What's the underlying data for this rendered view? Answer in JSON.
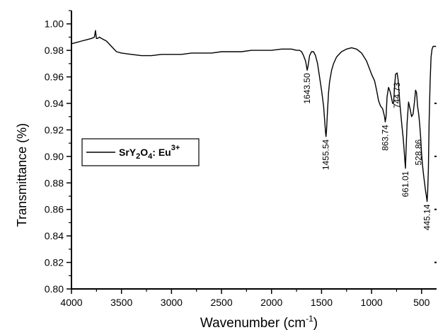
{
  "chart_data": {
    "type": "line",
    "title": "",
    "xlabel": "Wavenumber (cm",
    "xlabel_sup": "-1",
    "xlabel_tail": ")",
    "ylabel": "Transmittance (%)",
    "xlim": [
      4000,
      350
    ],
    "ylim": [
      0.8,
      1.01
    ],
    "x_reversed": true,
    "x_ticks": [
      4000,
      3500,
      3000,
      2500,
      2000,
      1500,
      1000,
      500
    ],
    "x_tick_labels": [
      "4000",
      "3500",
      "3000",
      "2500",
      "2000",
      "1500",
      "1000",
      "500"
    ],
    "y_ticks": [
      0.8,
      0.82,
      0.84,
      0.86,
      0.88,
      0.9,
      0.92,
      0.94,
      0.96,
      0.98,
      1.0
    ],
    "y_tick_labels": [
      "0.80",
      "0.82",
      "0.84",
      "0.86",
      "0.88",
      "0.90",
      "0.92",
      "0.94",
      "0.96",
      "0.98",
      "1.00"
    ],
    "grid": false,
    "legend": {
      "position": "left-middle",
      "entries": [
        {
          "text_main": "SrY",
          "sub1": "2",
          "mid": "O",
          "sub2": "4",
          "tail": ": Eu",
          "sup": "3+"
        }
      ]
    },
    "series": [
      {
        "color": "#000000",
        "x": [
          4000,
          3950,
          3900,
          3850,
          3800,
          3770,
          3760,
          3750,
          3740,
          3720,
          3700,
          3650,
          3600,
          3550,
          3500,
          3400,
          3300,
          3200,
          3100,
          3000,
          2900,
          2800,
          2700,
          2600,
          2500,
          2400,
          2300,
          2200,
          2100,
          2000,
          1900,
          1800,
          1750,
          1720,
          1700,
          1680,
          1660,
          1650,
          1643.5,
          1635,
          1620,
          1600,
          1580,
          1560,
          1540,
          1520,
          1500,
          1480,
          1470,
          1460,
          1455.54,
          1450,
          1440,
          1430,
          1420,
          1400,
          1380,
          1350,
          1300,
          1250,
          1200,
          1150,
          1100,
          1050,
          1000,
          970,
          950,
          930,
          910,
          890,
          880,
          870,
          863.74,
          855,
          845,
          830,
          815,
          800,
          790,
          780,
          770,
          760,
          744.73,
          735,
          725,
          715,
          705,
          695,
          685,
          675,
          668,
          661.01,
          655,
          645,
          630,
          615,
          600,
          585,
          570,
          560,
          550,
          540,
          528.86,
          520,
          510,
          500,
          490,
          480,
          470,
          460,
          452,
          445.14,
          440,
          432,
          425,
          415,
          405,
          395,
          385,
          375,
          365,
          355
        ],
        "y": [
          0.985,
          0.986,
          0.987,
          0.988,
          0.989,
          0.99,
          0.995,
          0.989,
          0.989,
          0.99,
          0.989,
          0.987,
          0.983,
          0.979,
          0.978,
          0.977,
          0.976,
          0.976,
          0.977,
          0.977,
          0.977,
          0.978,
          0.978,
          0.978,
          0.979,
          0.979,
          0.979,
          0.98,
          0.98,
          0.98,
          0.981,
          0.981,
          0.98,
          0.98,
          0.979,
          0.976,
          0.972,
          0.968,
          0.965,
          0.968,
          0.976,
          0.979,
          0.979,
          0.976,
          0.97,
          0.96,
          0.95,
          0.938,
          0.928,
          0.918,
          0.915,
          0.92,
          0.935,
          0.948,
          0.956,
          0.965,
          0.97,
          0.975,
          0.979,
          0.981,
          0.982,
          0.981,
          0.978,
          0.972,
          0.962,
          0.957,
          0.95,
          0.942,
          0.938,
          0.936,
          0.933,
          0.93,
          0.926,
          0.93,
          0.945,
          0.952,
          0.949,
          0.944,
          0.94,
          0.94,
          0.952,
          0.962,
          0.963,
          0.958,
          0.948,
          0.938,
          0.93,
          0.922,
          0.915,
          0.905,
          0.898,
          0.891,
          0.905,
          0.925,
          0.941,
          0.936,
          0.93,
          0.932,
          0.942,
          0.95,
          0.948,
          0.938,
          0.932,
          0.925,
          0.915,
          0.902,
          0.893,
          0.886,
          0.88,
          0.874,
          0.87,
          0.866,
          0.872,
          0.89,
          0.925,
          0.955,
          0.975,
          0.981,
          0.983,
          0.983,
          0.983,
          0.983
        ]
      }
    ],
    "annotations": [
      {
        "text": "1643.50",
        "x": 1643.5,
        "y": 0.965
      },
      {
        "text": "1455.54",
        "x": 1455.54,
        "y": 0.915
      },
      {
        "text": "863.74",
        "x": 863.74,
        "y": 0.926
      },
      {
        "text": "744.73",
        "x": 744.73,
        "y": 0.958
      },
      {
        "text": "661.01",
        "x": 661.01,
        "y": 0.891
      },
      {
        "text": "528.86",
        "x": 528.86,
        "y": 0.915
      },
      {
        "text": "445.14",
        "x": 445.14,
        "y": 0.866
      }
    ]
  }
}
